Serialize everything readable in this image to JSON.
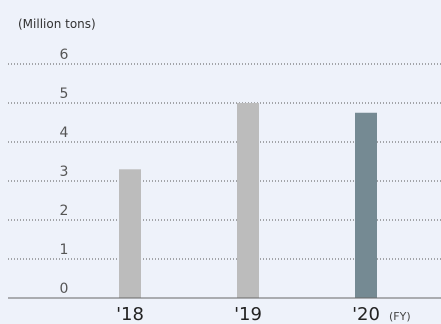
{
  "chart_data": {
    "type": "bar",
    "unit_label": "(Million tons)",
    "categories": [
      "'18",
      "'19",
      "'20"
    ],
    "values": [
      3.3,
      5.0,
      4.75
    ],
    "colors": [
      "#bcbcbc",
      "#bcbcbc",
      "#758a93"
    ],
    "y_ticks": [
      "0",
      "1",
      "2",
      "3",
      "4",
      "5",
      "6"
    ],
    "ylim": [
      0,
      6
    ],
    "x_axis_suffix": "(FY)",
    "grid": true,
    "title": "",
    "xlabel": "",
    "ylabel": ""
  }
}
